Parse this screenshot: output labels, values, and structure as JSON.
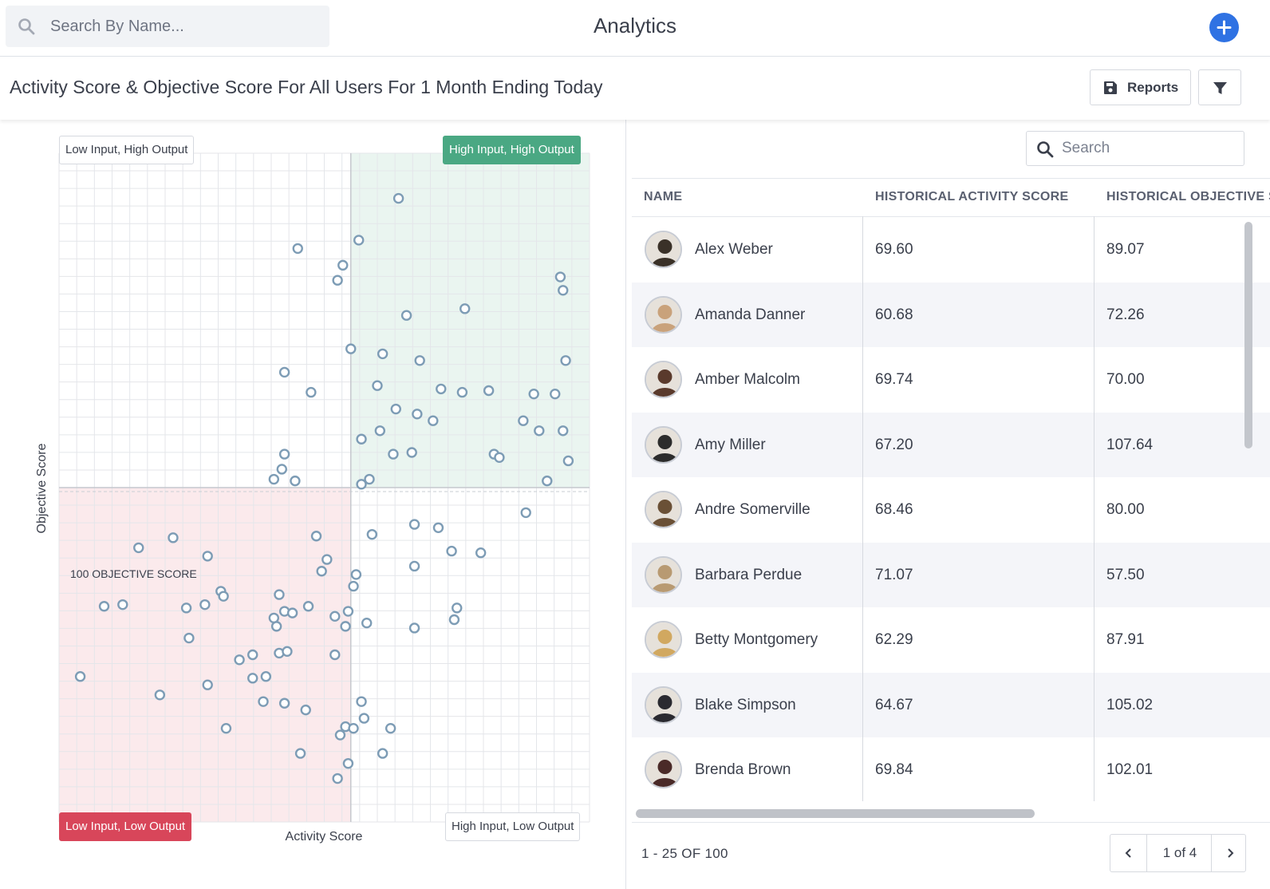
{
  "topbar": {
    "search_placeholder": "Search By Name...",
    "title": "Analytics",
    "add_label": "+"
  },
  "header": {
    "title": "Activity Score & Objective Score For All Users For 1 Month Ending Today",
    "reports_label": "Reports"
  },
  "colors": {
    "accent": "#2f72e3",
    "high_high": "#4aa883",
    "low_low": "#d8465a",
    "point": "#7d9cb5"
  },
  "chart_data": {
    "type": "scatter",
    "xlabel": "Activity Score",
    "ylabel": "Objective Score",
    "xlim": [
      0,
      100
    ],
    "ylim": [
      0,
      200
    ],
    "x_threshold": 55,
    "y_threshold": 100,
    "reference_line_label": "100 OBJECTIVE SCORE",
    "quadrants": {
      "top_left": "Low Input, High Output",
      "top_right": "High Input, High Output",
      "bottom_left": "Low Input, Low Output",
      "bottom_right": "High Input, Low Output"
    },
    "points": [
      [
        64.0,
        186.5
      ],
      [
        45.0,
        171.5
      ],
      [
        56.5,
        174.0
      ],
      [
        53.5,
        166.5
      ],
      [
        52.5,
        162.0
      ],
      [
        94.5,
        163.0
      ],
      [
        95.0,
        159.0
      ],
      [
        65.5,
        151.5
      ],
      [
        76.5,
        153.5
      ],
      [
        55.0,
        141.5
      ],
      [
        61.0,
        140.0
      ],
      [
        68.0,
        138.0
      ],
      [
        95.5,
        138.0
      ],
      [
        42.5,
        134.5
      ],
      [
        60.0,
        130.5
      ],
      [
        47.5,
        128.5
      ],
      [
        72.0,
        129.5
      ],
      [
        76.0,
        128.5
      ],
      [
        81.0,
        129.0
      ],
      [
        89.5,
        128.0
      ],
      [
        93.5,
        128.0
      ],
      [
        63.5,
        123.5
      ],
      [
        67.5,
        122.0
      ],
      [
        70.5,
        120.0
      ],
      [
        87.5,
        120.0
      ],
      [
        60.5,
        117.0
      ],
      [
        90.5,
        117.0
      ],
      [
        95.0,
        117.0
      ],
      [
        57.0,
        114.5
      ],
      [
        63.0,
        110.0
      ],
      [
        66.5,
        110.5
      ],
      [
        82.0,
        110.0
      ],
      [
        83.0,
        109.0
      ],
      [
        42.5,
        110.0
      ],
      [
        96.0,
        108.0
      ],
      [
        42.0,
        105.5
      ],
      [
        40.5,
        102.5
      ],
      [
        44.5,
        102.0
      ],
      [
        57.0,
        101.0
      ],
      [
        58.5,
        102.5
      ],
      [
        92.0,
        102.0
      ],
      [
        88.0,
        92.5
      ],
      [
        67.0,
        89.0
      ],
      [
        71.5,
        88.0
      ],
      [
        48.5,
        85.5
      ],
      [
        21.5,
        85.0
      ],
      [
        15.0,
        82.0
      ],
      [
        74.0,
        81.0
      ],
      [
        79.5,
        80.5
      ],
      [
        28.0,
        79.5
      ],
      [
        50.5,
        78.5
      ],
      [
        67.0,
        76.5
      ],
      [
        49.5,
        75.0
      ],
      [
        56.0,
        74.0
      ],
      [
        55.5,
        70.5
      ],
      [
        41.5,
        68.0
      ],
      [
        30.5,
        69.0
      ],
      [
        31.0,
        67.5
      ],
      [
        8.5,
        64.5
      ],
      [
        12.0,
        65.0
      ],
      [
        24.0,
        64.0
      ],
      [
        27.5,
        65.0
      ],
      [
        47.0,
        64.5
      ],
      [
        42.5,
        63.0
      ],
      [
        44.0,
        62.5
      ],
      [
        52.0,
        61.5
      ],
      [
        54.5,
        63.0
      ],
      [
        40.5,
        61.0
      ],
      [
        41.0,
        58.5
      ],
      [
        54.0,
        58.5
      ],
      [
        58.0,
        59.5
      ],
      [
        67.0,
        58.0
      ],
      [
        75.0,
        64.0
      ],
      [
        74.5,
        60.5
      ],
      [
        24.5,
        55.0
      ],
      [
        41.5,
        50.5
      ],
      [
        43.0,
        51.0
      ],
      [
        36.5,
        50.0
      ],
      [
        34.0,
        48.5
      ],
      [
        52.0,
        50.0
      ],
      [
        4.0,
        43.5
      ],
      [
        36.5,
        43.0
      ],
      [
        39.0,
        43.5
      ],
      [
        28.0,
        41.0
      ],
      [
        19.0,
        38.0
      ],
      [
        38.5,
        36.0
      ],
      [
        42.5,
        35.5
      ],
      [
        46.5,
        33.5
      ],
      [
        57.0,
        36.0
      ],
      [
        57.5,
        31.0
      ],
      [
        31.5,
        28.0
      ],
      [
        54.0,
        28.5
      ],
      [
        55.5,
        28.0
      ],
      [
        62.5,
        28.0
      ],
      [
        53.0,
        26.0
      ],
      [
        45.5,
        20.5
      ],
      [
        54.5,
        17.5
      ],
      [
        61.0,
        20.5
      ],
      [
        52.5,
        13.0
      ],
      [
        59.0,
        86.0
      ]
    ]
  },
  "table": {
    "search_placeholder": "Search",
    "columns": [
      "NAME",
      "HISTORICAL ACTIVITY SCORE",
      "HISTORICAL OBJECTIVE SCORE"
    ],
    "rows": [
      {
        "name": "Alex Weber",
        "activity": "69.60",
        "objective": "89.07",
        "avatar_color": "#3a3128"
      },
      {
        "name": "Amanda Danner",
        "activity": "60.68",
        "objective": "72.26",
        "avatar_color": "#c9a27b"
      },
      {
        "name": "Amber Malcolm",
        "activity": "69.74",
        "objective": "70.00",
        "avatar_color": "#5a3a2c"
      },
      {
        "name": "Amy Miller",
        "activity": "67.20",
        "objective": "107.64",
        "avatar_color": "#2c2c2c"
      },
      {
        "name": "Andre Somerville",
        "activity": "68.46",
        "objective": "80.00",
        "avatar_color": "#6a5036"
      },
      {
        "name": "Barbara Perdue",
        "activity": "71.07",
        "objective": "57.50",
        "avatar_color": "#b89a72"
      },
      {
        "name": "Betty Montgomery",
        "activity": "62.29",
        "objective": "87.91",
        "avatar_color": "#d1a860"
      },
      {
        "name": "Blake Simpson",
        "activity": "64.67",
        "objective": "105.02",
        "avatar_color": "#2a2a30"
      },
      {
        "name": "Brenda Brown",
        "activity": "69.84",
        "objective": "102.01",
        "avatar_color": "#4a2a28"
      }
    ],
    "range_text": "1 - 25 OF 100",
    "page_label": "1 of 4"
  }
}
